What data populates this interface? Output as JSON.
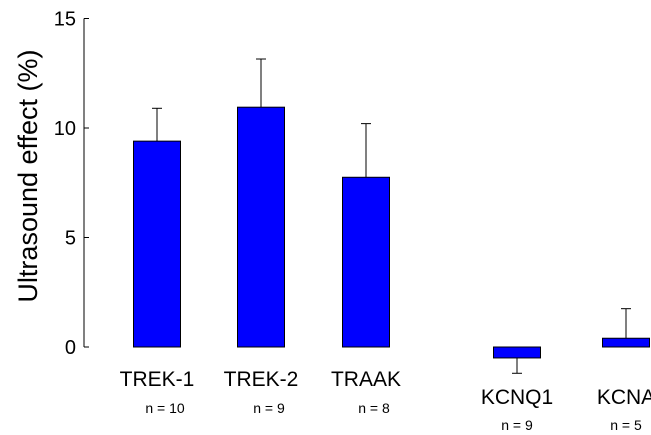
{
  "chart_data": {
    "type": "bar",
    "title": "",
    "xlabel": "",
    "ylabel": "Ultrasound effect (%)",
    "ylim": [
      0,
      15
    ],
    "yticks": [
      0,
      5,
      10,
      15
    ],
    "grid": false,
    "bar_color": "#0000FF",
    "error_bar_color": "#000000",
    "categories": [
      "TREK-1",
      "TREK-2",
      "TRAAK",
      "KCNQ1",
      "KCNA"
    ],
    "n_labels": [
      "n = 10",
      "n = 9",
      "n = 8",
      "n = 9",
      "n = 5"
    ],
    "values": [
      9.4,
      10.95,
      7.75,
      -0.5,
      0.4
    ],
    "error": [
      1.5,
      2.2,
      2.45,
      0.7,
      1.35
    ]
  }
}
